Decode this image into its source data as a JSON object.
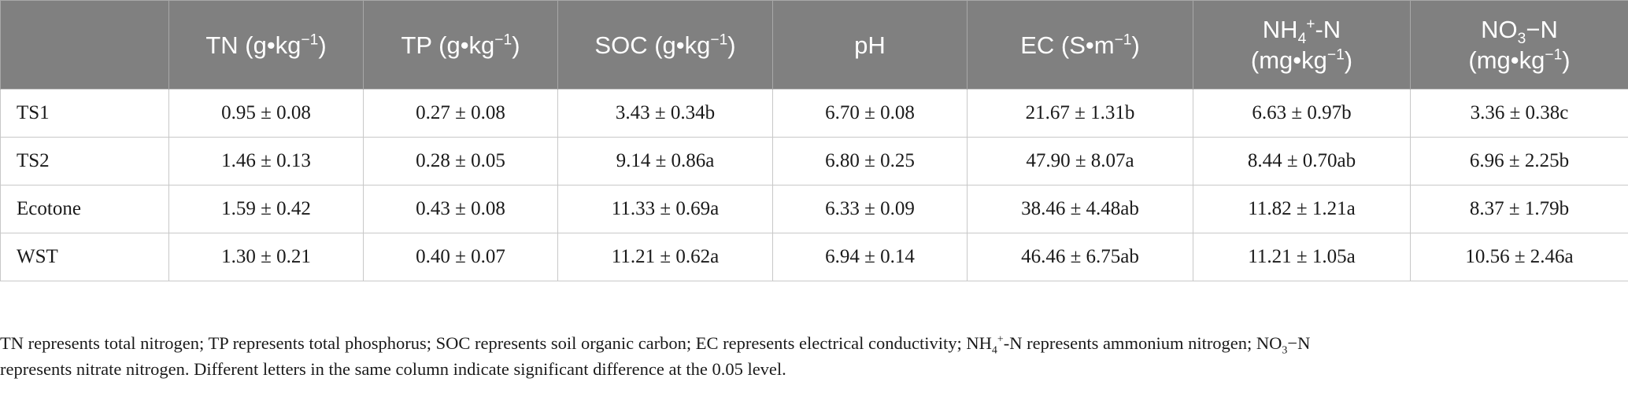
{
  "table": {
    "headers": [
      {
        "key": "blank",
        "parts": [
          ""
        ]
      },
      {
        "key": "tn",
        "parts": [
          "TN (g•kg",
          "−1",
          ")"
        ]
      },
      {
        "key": "tp",
        "parts": [
          "TP (g•kg",
          "−1",
          ")"
        ]
      },
      {
        "key": "soc",
        "parts": [
          "SOC (g•kg",
          "−1",
          ")"
        ]
      },
      {
        "key": "ph",
        "parts": [
          "pH"
        ]
      },
      {
        "key": "ec",
        "parts": [
          "EC (S•m",
          "−1",
          ")"
        ]
      },
      {
        "key": "nh4",
        "line1": [
          "NH",
          "4",
          "+",
          "-N"
        ],
        "line2": [
          "(mg•kg",
          "−1",
          ")"
        ]
      },
      {
        "key": "no3",
        "line1": [
          "NO",
          "3",
          "−N"
        ],
        "line2": [
          "(mg•kg",
          "−1",
          ")"
        ]
      }
    ],
    "rows": [
      {
        "label": "TS1",
        "cells": [
          "0.95 ± 0.08",
          "0.27 ± 0.08",
          "3.43 ± 0.34b",
          "6.70 ± 0.08",
          "21.67 ± 1.31b",
          "6.63 ± 0.97b",
          "3.36 ± 0.38c"
        ]
      },
      {
        "label": "TS2",
        "cells": [
          "1.46 ± 0.13",
          "0.28 ± 0.05",
          "9.14 ± 0.86a",
          "6.80 ± 0.25",
          "47.90 ± 8.07a",
          "8.44 ± 0.70ab",
          "6.96 ± 2.25b"
        ]
      },
      {
        "label": "Ecotone",
        "cells": [
          "1.59 ± 0.42",
          "0.43 ± 0.08",
          "11.33 ± 0.69a",
          "6.33 ± 0.09",
          "38.46 ± 4.48ab",
          "11.82 ± 1.21a",
          "8.37 ± 1.79b"
        ]
      },
      {
        "label": "WST",
        "cells": [
          "1.30 ± 0.21",
          "0.40 ± 0.07",
          "11.21 ± 0.62a",
          "6.94 ± 0.14",
          "46.46 ± 6.75ab",
          "11.21 ± 1.05a",
          "10.56 ± 2.46a"
        ]
      }
    ]
  },
  "footnote": {
    "line1": {
      "p1": "TN represents total nitrogen; TP represents total phosphorus; SOC represents soil organic carbon; EC represents electrical conductivity; NH",
      "sub1": "4",
      "sup1": "+",
      "p2": "-N represents ammonium nitrogen; NO",
      "sub2": "3",
      "p3": "−N"
    },
    "line2": "represents nitrate nitrogen. Different letters in the same column indicate significant difference at the 0.05 level."
  },
  "colors": {
    "header_bg": "#808080",
    "header_text": "#ffffff",
    "grid": "#c8c8c8"
  }
}
